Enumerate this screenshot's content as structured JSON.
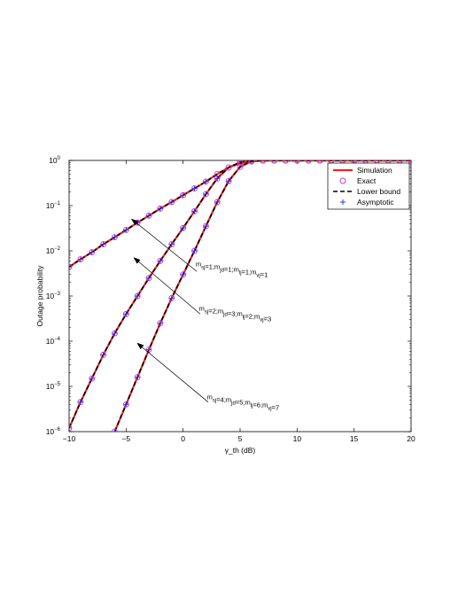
{
  "chart_data": {
    "type": "line",
    "title": "",
    "xlabel": "γ_th (dB)",
    "ylabel": "Outage probability",
    "xlim": [
      -10,
      20
    ],
    "ylim": [
      1e-06,
      1
    ],
    "yscale": "log",
    "grid": false,
    "legend_position": "top-right",
    "x_ticks": [
      -10,
      -5,
      0,
      5,
      10,
      15,
      20
    ],
    "x_tick_labels": [
      "−10",
      "−5",
      "0",
      "5",
      "10",
      "15",
      "20"
    ],
    "y_ticks": [
      1e-06,
      1e-05,
      0.0001,
      0.001,
      0.01,
      0.1,
      1
    ],
    "y_tick_labels": [
      {
        "base": "10",
        "exp": "−6"
      },
      {
        "base": "10",
        "exp": "−5"
      },
      {
        "base": "10",
        "exp": "−4"
      },
      {
        "base": "10",
        "exp": "−3"
      },
      {
        "base": "10",
        "exp": "−2"
      },
      {
        "base": "10",
        "exp": "−1"
      },
      {
        "base": "10",
        "exp": "0"
      }
    ],
    "legend": [
      {
        "label": "Simulation",
        "style": "line",
        "color": "#e8262a"
      },
      {
        "label": "Exact",
        "style": "circle",
        "color": "#c93cc9"
      },
      {
        "label": "Lower bound",
        "style": "dashed",
        "color": "#000000"
      },
      {
        "label": "Asymptotic",
        "style": "plus",
        "color": "#2b3bd6"
      }
    ],
    "curves": [
      {
        "id": "case1",
        "points": [
          [
            -10,
            0.0044
          ],
          [
            -9,
            0.0065
          ],
          [
            -8,
            0.0093
          ],
          [
            -7,
            0.014
          ],
          [
            -6,
            0.02
          ],
          [
            -5,
            0.029
          ],
          [
            -4,
            0.042
          ],
          [
            -3,
            0.06
          ],
          [
            -2,
            0.086
          ],
          [
            -1,
            0.12
          ],
          [
            0,
            0.17
          ],
          [
            1,
            0.24
          ],
          [
            2,
            0.34
          ],
          [
            3,
            0.5
          ],
          [
            4,
            0.7
          ],
          [
            5,
            0.86
          ],
          [
            6,
            0.95
          ],
          [
            7,
            0.99
          ],
          [
            8,
            1
          ],
          [
            9,
            1
          ],
          [
            10,
            1
          ],
          [
            11,
            1
          ],
          [
            12,
            1
          ],
          [
            13,
            1
          ],
          [
            14,
            1
          ],
          [
            15,
            1
          ],
          [
            16,
            1
          ],
          [
            17,
            1
          ],
          [
            18,
            1
          ],
          [
            19,
            1
          ],
          [
            20,
            1
          ]
        ]
      },
      {
        "id": "case2",
        "points": [
          [
            -10,
            1.2e-06
          ],
          [
            -9,
            4.5e-06
          ],
          [
            -8,
            1.5e-05
          ],
          [
            -7,
            5e-05
          ],
          [
            -6,
            0.00015
          ],
          [
            -5,
            0.0004
          ],
          [
            -4,
            0.001
          ],
          [
            -3,
            0.0025
          ],
          [
            -2,
            0.006
          ],
          [
            -1,
            0.014
          ],
          [
            0,
            0.032
          ],
          [
            1,
            0.075
          ],
          [
            2,
            0.18
          ],
          [
            3,
            0.4
          ],
          [
            4,
            0.7
          ],
          [
            5,
            0.91
          ],
          [
            6,
            0.99
          ],
          [
            7,
            1
          ],
          [
            8,
            1
          ],
          [
            9,
            1
          ],
          [
            10,
            1
          ],
          [
            11,
            1
          ],
          [
            12,
            1
          ],
          [
            13,
            1
          ],
          [
            14,
            1
          ],
          [
            15,
            1
          ],
          [
            16,
            1
          ],
          [
            17,
            1
          ],
          [
            18,
            1
          ],
          [
            19,
            1
          ],
          [
            20,
            1
          ]
        ]
      },
      {
        "id": "case3",
        "points": [
          [
            -6,
            1e-06
          ],
          [
            -5,
            4e-06
          ],
          [
            -4,
            1.6e-05
          ],
          [
            -3,
            6.5e-05
          ],
          [
            -2,
            0.00025
          ],
          [
            -1,
            0.0009
          ],
          [
            0,
            0.003
          ],
          [
            1,
            0.01
          ],
          [
            2,
            0.035
          ],
          [
            3,
            0.12
          ],
          [
            4,
            0.35
          ],
          [
            5,
            0.72
          ],
          [
            6,
            0.96
          ],
          [
            7,
            1
          ],
          [
            8,
            1
          ],
          [
            9,
            1
          ],
          [
            10,
            1
          ],
          [
            11,
            1
          ],
          [
            12,
            1
          ],
          [
            13,
            1
          ],
          [
            14,
            1
          ],
          [
            15,
            1
          ],
          [
            16,
            1
          ],
          [
            17,
            1
          ],
          [
            18,
            1
          ],
          [
            19,
            1
          ],
          [
            20,
            1
          ]
        ]
      }
    ],
    "annotations": [
      {
        "id": "ann1",
        "arrow_from": [
          1.2,
          0.0035
        ],
        "arrow_to": [
          -4.5,
          0.05
        ],
        "text_at": [
          1.1,
          0.0045
        ],
        "parts": [
          {
            "t": "m",
            "sub": "sj"
          },
          {
            "t": "=1;m",
            "sub": "jd"
          },
          {
            "t": "=1;m",
            "sub": "lj"
          },
          {
            "t": "=1;m",
            "sub": "vj"
          },
          {
            "t": "=1",
            "sub": ""
          }
        ]
      },
      {
        "id": "ann2",
        "arrow_from": [
          1.5,
          0.0004
        ],
        "arrow_to": [
          -4.3,
          0.007
        ],
        "text_at": [
          1.4,
          0.00047
        ],
        "parts": [
          {
            "t": "m",
            "sub": "sj"
          },
          {
            "t": "=2;m",
            "sub": "jd"
          },
          {
            "t": "=3;m",
            "sub": "lj"
          },
          {
            "t": "=2;m",
            "sub": "vj"
          },
          {
            "t": "=3",
            "sub": ""
          }
        ]
      },
      {
        "id": "ann3",
        "arrow_from": [
          2.2,
          4.5e-06
        ],
        "arrow_to": [
          -4.0,
          9e-05
        ],
        "text_at": [
          2.1,
          5.2e-06
        ],
        "parts": [
          {
            "t": "m",
            "sub": "sj"
          },
          {
            "t": "=4;m",
            "sub": "jd"
          },
          {
            "t": "=5;m",
            "sub": "lj"
          },
          {
            "t": "=6;m",
            "sub": "vj"
          },
          {
            "t": "=7",
            "sub": ""
          }
        ]
      }
    ]
  }
}
